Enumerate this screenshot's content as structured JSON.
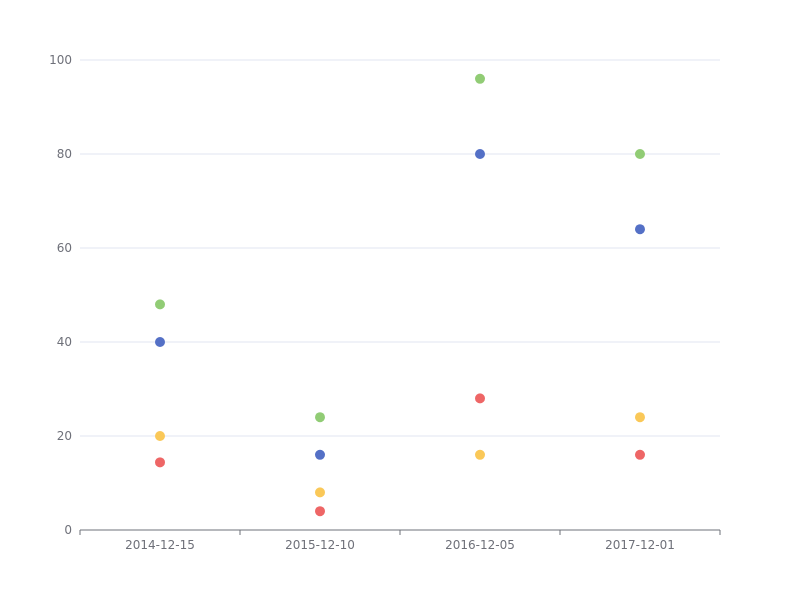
{
  "chart_data": {
    "type": "scatter",
    "categories": [
      "2014-12-15",
      "2015-12-10",
      "2016-12-05",
      "2017-12-01"
    ],
    "y_ticks": [
      0,
      20,
      40,
      60,
      80,
      100
    ],
    "ylim": [
      0,
      100
    ],
    "grid": true,
    "series": [
      {
        "color": "#91cc75",
        "values": [
          48,
          24,
          96,
          80
        ]
      },
      {
        "color": "#5470c6",
        "values": [
          40,
          16,
          80,
          64
        ]
      },
      {
        "color": "#fac858",
        "values": [
          20,
          8,
          16,
          24
        ]
      },
      {
        "color": "#ee6666",
        "values": [
          14.4,
          4,
          28,
          16
        ]
      }
    ]
  }
}
